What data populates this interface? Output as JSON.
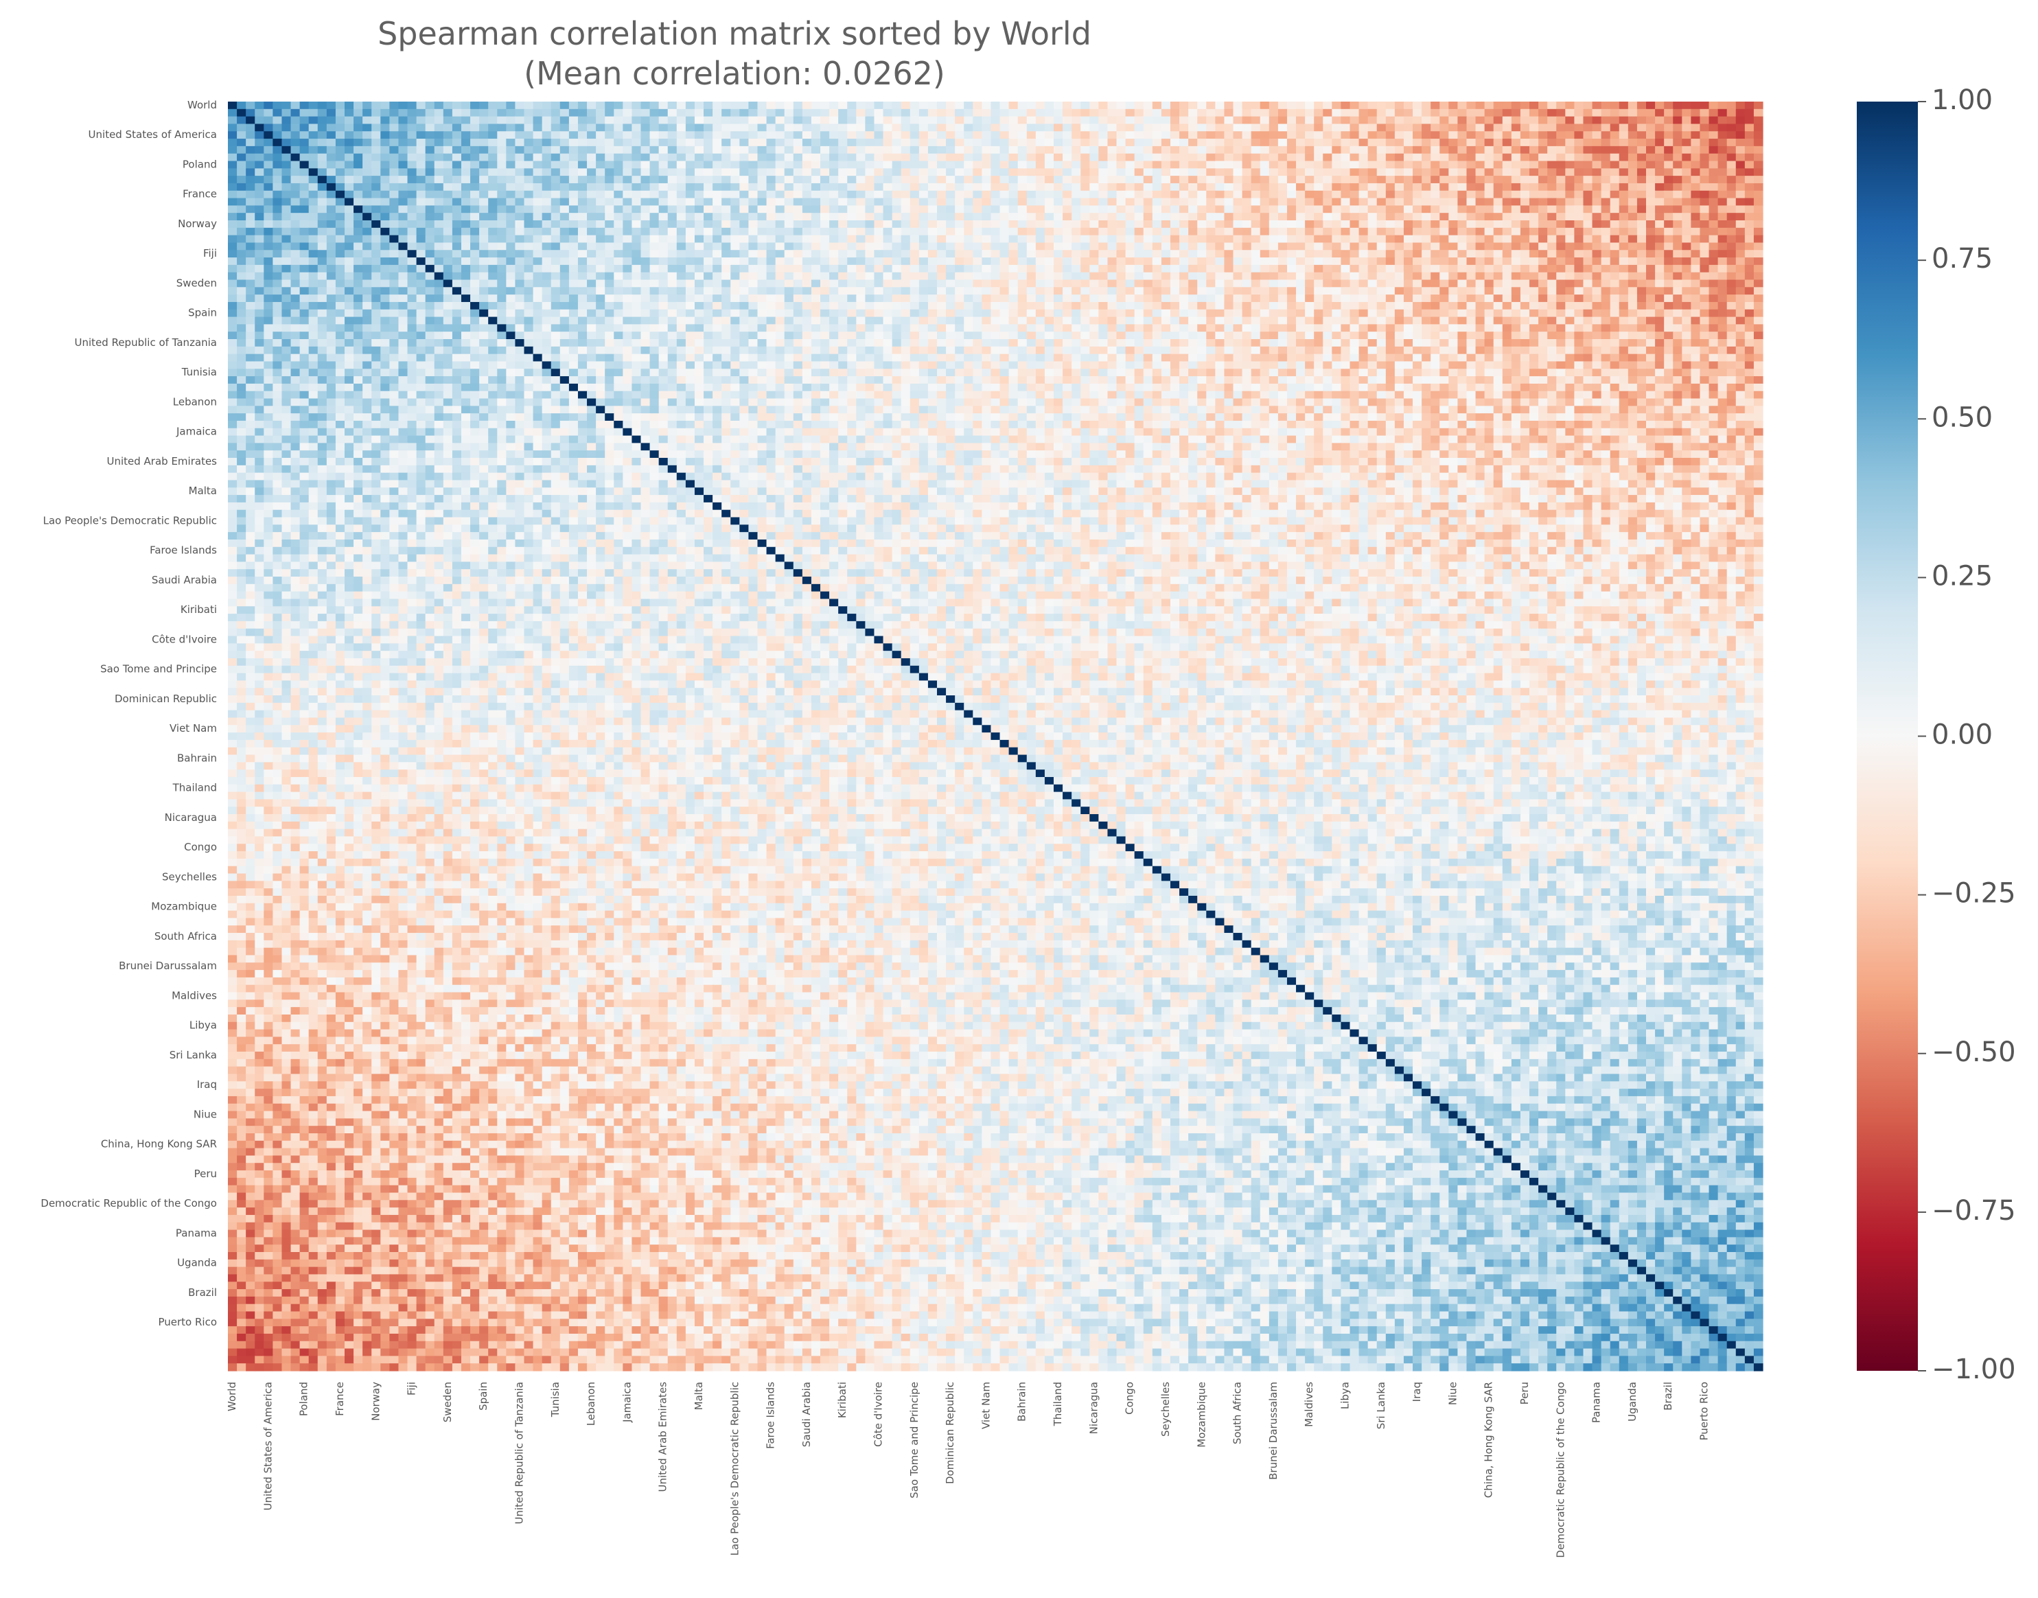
{
  "chart_data": {
    "type": "heatmap",
    "title": "Spearman correlation matrix sorted by World",
    "subtitle": "(Mean correlation: 0.0262)",
    "matrix_size": 171,
    "label_every": 4,
    "tick_labels": [
      "World",
      "United States of America",
      "Poland",
      "France",
      "Norway",
      "Fiji",
      "Sweden",
      "Spain",
      "United Republic of Tanzania",
      "Tunisia",
      "Lebanon",
      "Jamaica",
      "United Arab Emirates",
      "Malta",
      "Lao People's Democratic Republic",
      "Faroe Islands",
      "Saudi Arabia",
      "Kiribati",
      "Côte d'Ivoire",
      "Sao Tome and Principe",
      "Dominican Republic",
      "Viet Nam",
      "Bahrain",
      "Thailand",
      "Nicaragua",
      "Congo",
      "Seychelles",
      "Mozambique",
      "South Africa",
      "Brunei Darussalam",
      "Maldives",
      "Libya",
      "Sri Lanka",
      "Iraq",
      "Niue",
      "China, Hong Kong SAR",
      "Peru",
      "Democratic Republic of the Congo",
      "Panama",
      "Uganda",
      "Brazil",
      "Puerto Rico"
    ],
    "colormap": "RdBu",
    "color_stops": [
      "#67001f",
      "#b2182b",
      "#d6604d",
      "#f4a582",
      "#fddbc7",
      "#f7f7f7",
      "#d1e5f0",
      "#92c5de",
      "#4393c3",
      "#2166ac",
      "#053061"
    ],
    "vmin": -1.0,
    "vmax": 1.0,
    "colorbar_ticks": [
      "1.00",
      "0.75",
      "0.50",
      "0.25",
      "0.00",
      "−0.25",
      "−0.50",
      "−0.75",
      "−1.00"
    ],
    "diagonal_value": 1.0,
    "pattern": "strong positive correlation in the top-left and bottom-right corner blocks, negative correlation in the top-right and bottom-left corners, noisy near-zero values in between",
    "grid": false,
    "colorbar": "right"
  }
}
